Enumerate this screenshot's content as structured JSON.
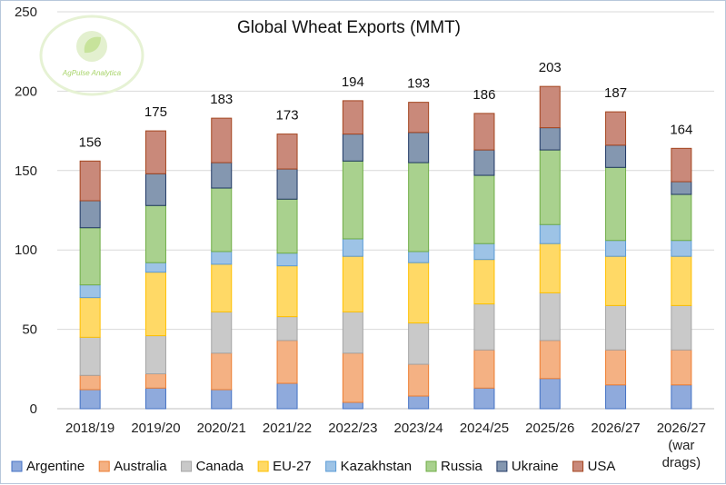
{
  "chart_data": {
    "type": "bar",
    "stacked": true,
    "title": "Global Wheat Exports (MMT)",
    "xlabel": "",
    "ylabel": "",
    "ylim": [
      0,
      250
    ],
    "yticks": [
      0,
      50,
      100,
      150,
      200,
      250
    ],
    "grid": true,
    "legend_position": "bottom",
    "categories": [
      [
        "2018/19"
      ],
      [
        "2019/20"
      ],
      [
        "2020/21"
      ],
      [
        "2021/22"
      ],
      [
        "2022/23"
      ],
      [
        "2023/24"
      ],
      [
        "2024/25"
      ],
      [
        "2025/26"
      ],
      [
        "2026/27"
      ],
      [
        "2026/27",
        "(war",
        "drags)"
      ]
    ],
    "totals": [
      156,
      175,
      183,
      173,
      194,
      193,
      186,
      203,
      187,
      164
    ],
    "series": [
      {
        "name": "Argentine",
        "color": "#8faadc",
        "edge": "#4472c4",
        "values": [
          12,
          13,
          12,
          16,
          4,
          8,
          13,
          19,
          15,
          15
        ]
      },
      {
        "name": "Australia",
        "color": "#f4b183",
        "edge": "#ed7d31",
        "values": [
          9,
          9,
          23,
          27,
          31,
          20,
          24,
          24,
          22,
          22
        ]
      },
      {
        "name": "Canada",
        "color": "#c9c9c9",
        "edge": "#a5a5a5",
        "values": [
          24,
          24,
          26,
          15,
          26,
          26,
          29,
          30,
          28,
          28
        ]
      },
      {
        "name": "EU-27",
        "color": "#ffd966",
        "edge": "#ffc000",
        "values": [
          25,
          40,
          30,
          32,
          35,
          38,
          28,
          31,
          31,
          31
        ]
      },
      {
        "name": "Kazakhstan",
        "color": "#9dc3e6",
        "edge": "#5b9bd5",
        "values": [
          8,
          6,
          8,
          8,
          11,
          7,
          10,
          12,
          10,
          10
        ]
      },
      {
        "name": "Russia",
        "color": "#a9d18e",
        "edge": "#70ad47",
        "values": [
          36,
          36,
          40,
          34,
          49,
          56,
          43,
          47,
          46,
          29
        ]
      },
      {
        "name": "Ukraine",
        "color": "#8497b0",
        "edge": "#203864",
        "values": [
          17,
          20,
          16,
          19,
          17,
          19,
          16,
          14,
          14,
          8
        ]
      },
      {
        "name": "USA",
        "color": "#c9897a",
        "edge": "#a4451f",
        "values": [
          25,
          27,
          28,
          22,
          21,
          19,
          23,
          26,
          21,
          21
        ]
      }
    ]
  },
  "logo": {
    "text": "AgPulse Analytica"
  }
}
